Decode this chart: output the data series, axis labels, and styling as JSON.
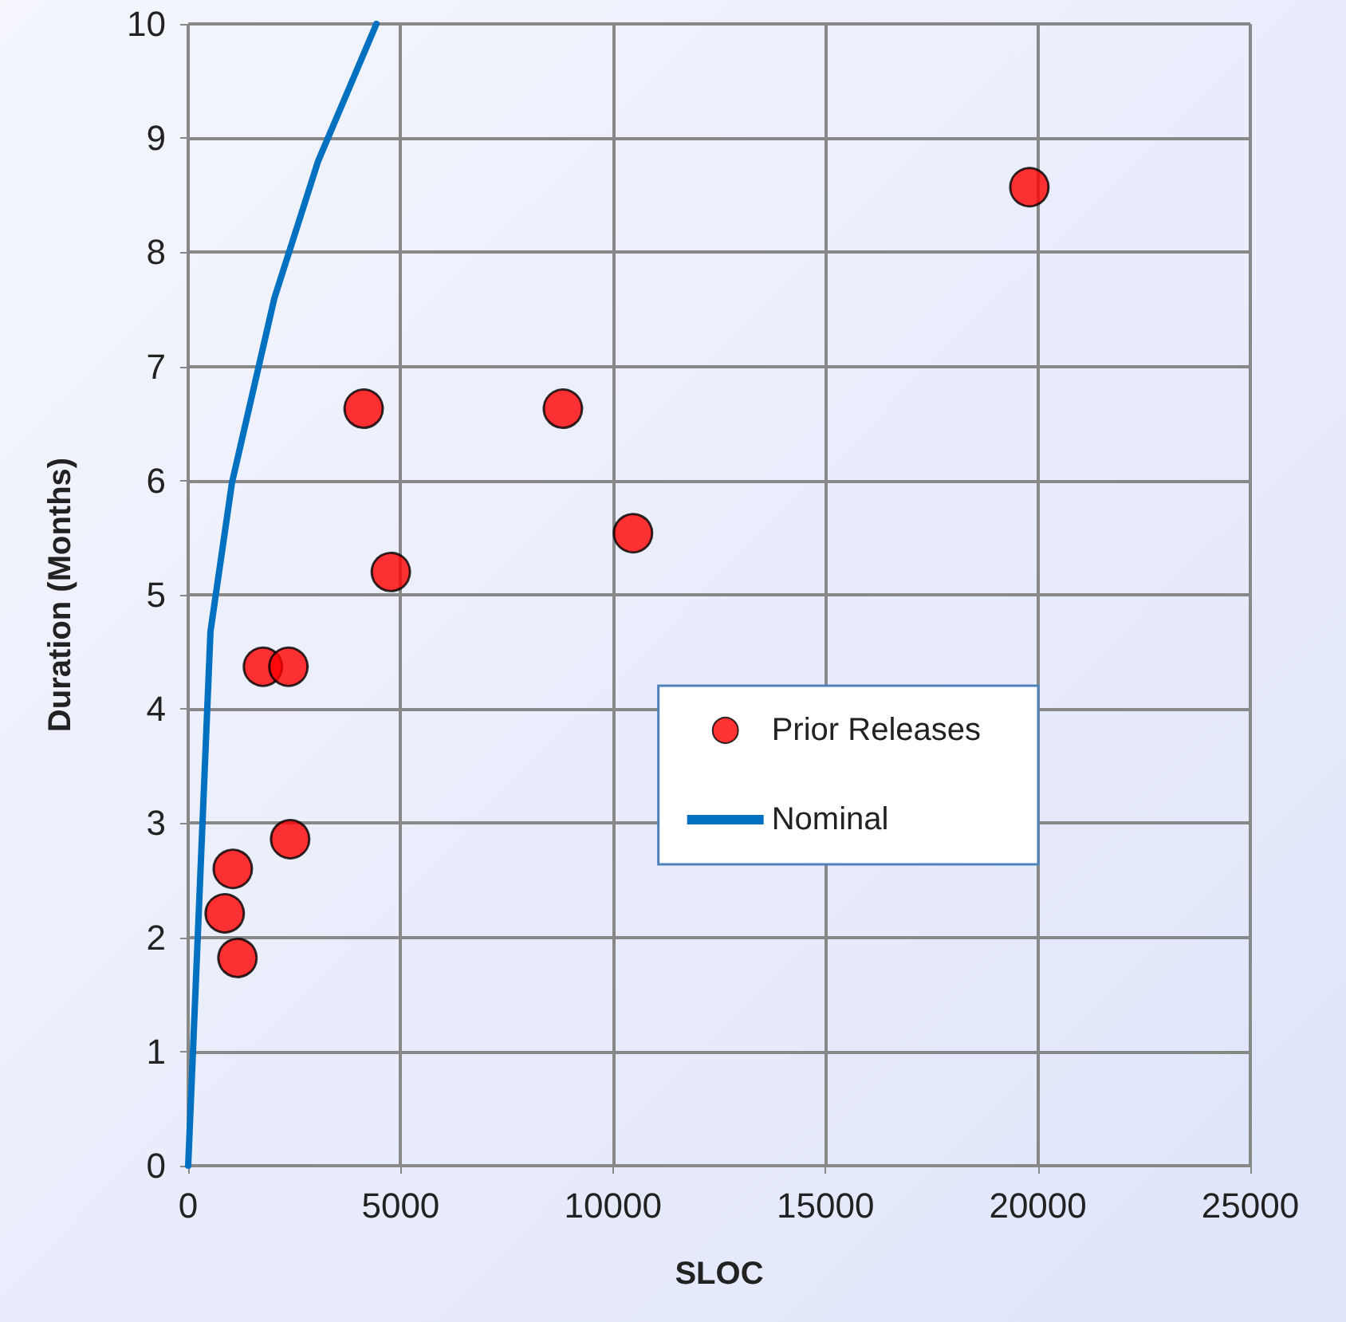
{
  "chart_data": {
    "type": "scatter",
    "xlabel": "SLOC",
    "ylabel": "Duration (Months)",
    "xlim": [
      0,
      25000
    ],
    "xticks": [
      0,
      5000,
      10000,
      15000,
      20000,
      25000
    ],
    "ylim": [
      0,
      10
    ],
    "yticks": [
      0,
      1,
      2,
      3,
      4,
      5,
      6,
      7,
      8,
      9,
      10
    ],
    "grid": true,
    "legend": "right",
    "marker": "circle",
    "series": [
      {
        "name": "Prior Releases",
        "color": "#ff0000",
        "x": [
          19800,
          4130,
          8820,
          10470,
          4770,
          1760,
          2360,
          2400,
          1050,
          860,
          1160
        ],
        "values": [
          8.57,
          6.63,
          6.63,
          5.54,
          5.2,
          4.37,
          4.37,
          2.86,
          2.6,
          2.21,
          1.82
        ]
      },
      {
        "name": "Nominal",
        "type": "line",
        "color": "#0070c0",
        "line_style": "solid",
        "marker": "none",
        "x": [
          0,
          525,
          1030,
          2030,
          3060,
          4430
        ],
        "values": [
          0,
          4.68,
          5.98,
          7.6,
          8.8,
          10
        ]
      }
    ]
  }
}
